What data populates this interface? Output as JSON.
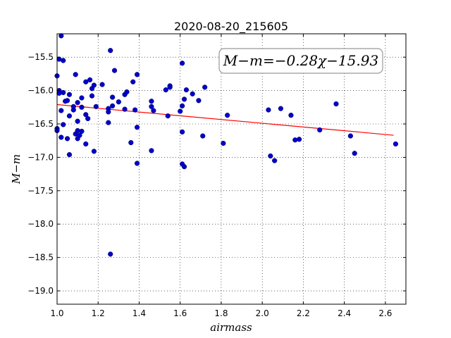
{
  "chart_data": {
    "type": "scatter",
    "title": "2020-08-20_215605",
    "xlabel": "airmass",
    "ylabel": "M−m",
    "xlim": [
      1.0,
      2.7
    ],
    "ylim": [
      -19.2,
      -15.15
    ],
    "y_inverted": true,
    "xticks": [
      1.0,
      1.2,
      1.4,
      1.6,
      1.8,
      2.0,
      2.2,
      2.4,
      2.6
    ],
    "xtick_labels": [
      "1.0",
      "1.2",
      "1.4",
      "1.6",
      "1.8",
      "2.0",
      "2.2",
      "2.4",
      "2.6"
    ],
    "yticks": [
      -15.5,
      -16.0,
      -16.5,
      -17.0,
      -17.5,
      -18.0,
      -18.5,
      -19.0
    ],
    "ytick_labels": [
      "−15.5",
      "−16.0",
      "−16.5",
      "−17.0",
      "−17.5",
      "−18.0",
      "−18.5",
      "−19.0"
    ],
    "grid": true,
    "legend_placement": "top-right",
    "annotation": "M−m=−0.28χ−15.93",
    "point_color": "#0000cc",
    "fit_color": "#ff0000",
    "points": [
      [
        1.02,
        -15.18
      ],
      [
        1.01,
        -15.53
      ],
      [
        1.03,
        -15.55
      ],
      [
        1.0,
        -15.78
      ],
      [
        1.01,
        -16.0
      ],
      [
        1.03,
        -16.03
      ],
      [
        1.01,
        -16.04
      ],
      [
        1.04,
        -16.16
      ],
      [
        1.06,
        -16.06
      ],
      [
        1.05,
        -16.15
      ],
      [
        1.09,
        -15.76
      ],
      [
        1.1,
        -16.18
      ],
      [
        1.02,
        -16.3
      ],
      [
        1.06,
        -16.38
      ],
      [
        1.08,
        -16.29
      ],
      [
        1.08,
        -16.24
      ],
      [
        1.1,
        -16.46
      ],
      [
        1.03,
        -16.51
      ],
      [
        1.0,
        -16.57
      ],
      [
        1.0,
        -16.6
      ],
      [
        1.02,
        -16.7
      ],
      [
        1.05,
        -16.72
      ],
      [
        1.09,
        -16.65
      ],
      [
        1.1,
        -16.6
      ],
      [
        1.12,
        -16.61
      ],
      [
        1.11,
        -16.67
      ],
      [
        1.1,
        -16.72
      ],
      [
        1.06,
        -16.96
      ],
      [
        1.12,
        -16.11
      ],
      [
        1.12,
        -16.25
      ],
      [
        1.14,
        -16.36
      ],
      [
        1.15,
        -16.42
      ],
      [
        1.14,
        -15.87
      ],
      [
        1.16,
        -15.84
      ],
      [
        1.17,
        -15.97
      ],
      [
        1.17,
        -16.08
      ],
      [
        1.18,
        -15.92
      ],
      [
        1.19,
        -16.24
      ],
      [
        1.22,
        -15.91
      ],
      [
        1.26,
        -15.4
      ],
      [
        1.28,
        -15.7
      ],
      [
        1.27,
        -16.1
      ],
      [
        1.27,
        -16.23
      ],
      [
        1.25,
        -16.27
      ],
      [
        1.25,
        -16.32
      ],
      [
        1.25,
        -16.48
      ],
      [
        1.3,
        -16.17
      ],
      [
        1.33,
        -16.06
      ],
      [
        1.34,
        -16.02
      ],
      [
        1.37,
        -15.87
      ],
      [
        1.39,
        -15.76
      ],
      [
        1.33,
        -16.28
      ],
      [
        1.38,
        -16.29
      ],
      [
        1.39,
        -16.55
      ],
      [
        1.36,
        -16.78
      ],
      [
        1.39,
        -17.09
      ],
      [
        1.14,
        -16.8
      ],
      [
        1.18,
        -16.91
      ],
      [
        1.26,
        -18.45
      ],
      [
        1.46,
        -16.16
      ],
      [
        1.46,
        -16.24
      ],
      [
        1.47,
        -16.3
      ],
      [
        1.46,
        -16.9
      ],
      [
        1.53,
        -15.99
      ],
      [
        1.55,
        -15.93
      ],
      [
        1.55,
        -15.95
      ],
      [
        1.54,
        -16.38
      ],
      [
        1.6,
        -16.31
      ],
      [
        1.61,
        -16.23
      ],
      [
        1.62,
        -16.13
      ],
      [
        1.61,
        -15.59
      ],
      [
        1.63,
        -15.99
      ],
      [
        1.66,
        -16.05
      ],
      [
        1.69,
        -16.15
      ],
      [
        1.72,
        -15.95
      ],
      [
        1.61,
        -16.62
      ],
      [
        1.71,
        -16.68
      ],
      [
        1.61,
        -17.1
      ],
      [
        1.62,
        -17.14
      ],
      [
        1.81,
        -16.79
      ],
      [
        1.83,
        -16.37
      ],
      [
        2.03,
        -16.29
      ],
      [
        2.09,
        -16.27
      ],
      [
        2.14,
        -16.37
      ],
      [
        2.04,
        -16.98
      ],
      [
        2.06,
        -17.05
      ],
      [
        2.16,
        -16.74
      ],
      [
        2.18,
        -16.73
      ],
      [
        2.28,
        -16.59
      ],
      [
        2.36,
        -16.2
      ],
      [
        2.43,
        -16.68
      ],
      [
        2.45,
        -16.94
      ],
      [
        2.65,
        -16.8
      ]
    ],
    "fit_line": {
      "slope": -0.28,
      "intercept": -15.93,
      "x_range": [
        1.0,
        2.64
      ]
    }
  }
}
